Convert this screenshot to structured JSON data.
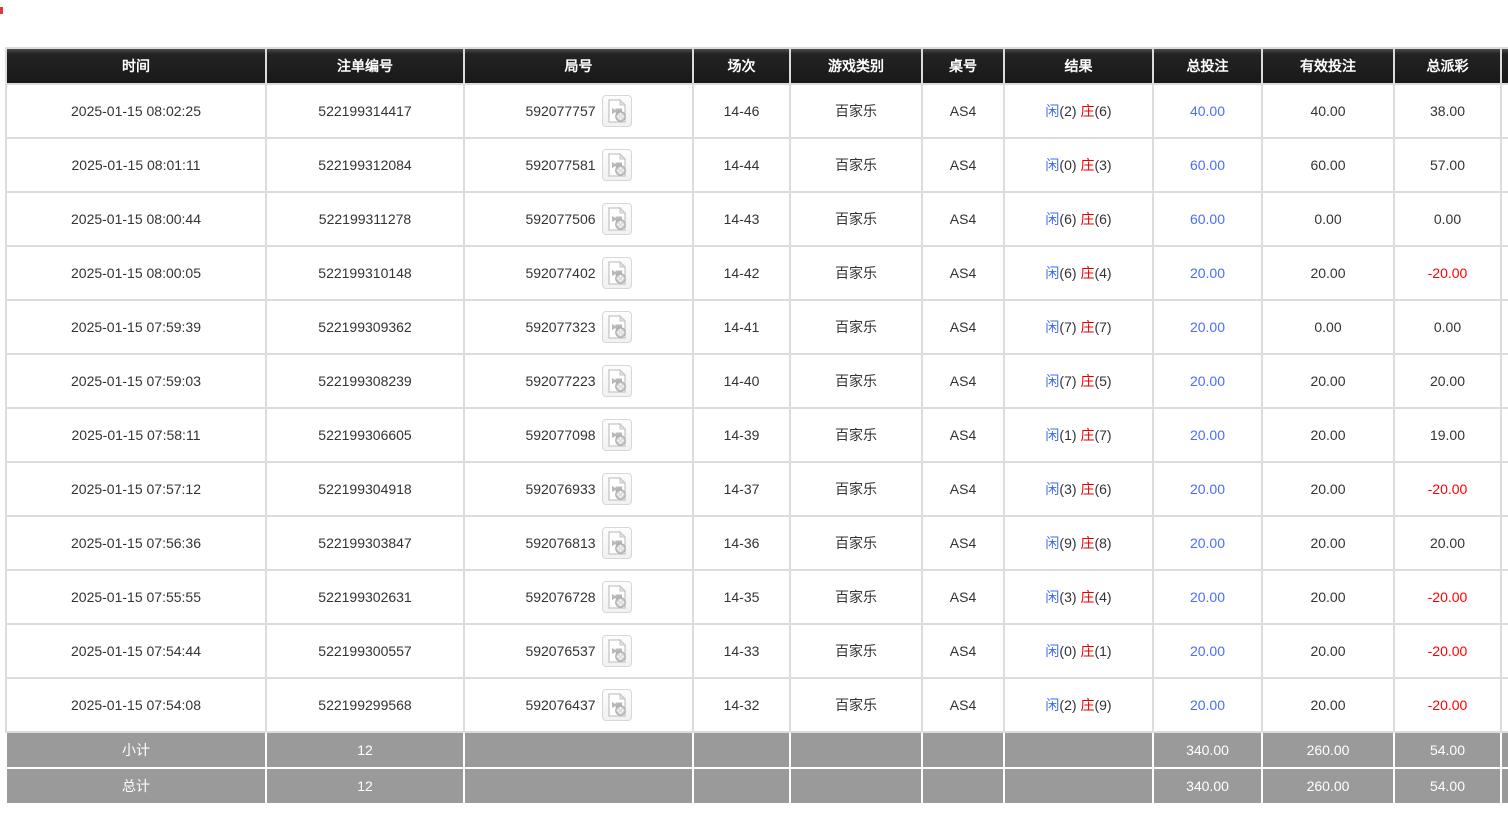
{
  "page": {
    "background": "#ffffff"
  },
  "colors": {
    "header_bg": "#1b1b1b",
    "header_text": "#ffffff",
    "cell_text": "#333333",
    "row_border": "#dcdcdc",
    "footer_bg": "#9a9a9a",
    "footer_text": "#ffffff",
    "total_bet_blue": "#4a6ef5",
    "player_blue": "#3d6af2",
    "banker_red": "#e60000",
    "negative_red": "#ff0000"
  },
  "table": {
    "columns": [
      "时间",
      "注单编号",
      "局号",
      "场次",
      "游戏类别",
      "桌号",
      "结果",
      "总投注",
      "有效投注",
      "总派彩",
      ""
    ],
    "result_labels": {
      "player": "闲",
      "banker": "庄"
    },
    "icons": {
      "round_video": "video-replay-icon"
    },
    "rows": [
      {
        "time": "2025-01-15 08:02:25",
        "bet_no": "522199314417",
        "round_no": "592077757",
        "session": "14-46",
        "game_type": "百家乐",
        "table_no": "AS4",
        "player": "(2)",
        "banker": "(6)",
        "total_bet": "40.00",
        "valid_bet": "40.00",
        "payout": "38.00"
      },
      {
        "time": "2025-01-15 08:01:11",
        "bet_no": "522199312084",
        "round_no": "592077581",
        "session": "14-44",
        "game_type": "百家乐",
        "table_no": "AS4",
        "player": "(0)",
        "banker": "(3)",
        "total_bet": "60.00",
        "valid_bet": "60.00",
        "payout": "57.00"
      },
      {
        "time": "2025-01-15 08:00:44",
        "bet_no": "522199311278",
        "round_no": "592077506",
        "session": "14-43",
        "game_type": "百家乐",
        "table_no": "AS4",
        "player": "(6)",
        "banker": "(6)",
        "total_bet": "60.00",
        "valid_bet": "0.00",
        "payout": "0.00"
      },
      {
        "time": "2025-01-15 08:00:05",
        "bet_no": "522199310148",
        "round_no": "592077402",
        "session": "14-42",
        "game_type": "百家乐",
        "table_no": "AS4",
        "player": "(6)",
        "banker": "(4)",
        "total_bet": "20.00",
        "valid_bet": "20.00",
        "payout": "-20.00"
      },
      {
        "time": "2025-01-15 07:59:39",
        "bet_no": "522199309362",
        "round_no": "592077323",
        "session": "14-41",
        "game_type": "百家乐",
        "table_no": "AS4",
        "player": "(7)",
        "banker": "(7)",
        "total_bet": "20.00",
        "valid_bet": "0.00",
        "payout": "0.00"
      },
      {
        "time": "2025-01-15 07:59:03",
        "bet_no": "522199308239",
        "round_no": "592077223",
        "session": "14-40",
        "game_type": "百家乐",
        "table_no": "AS4",
        "player": "(7)",
        "banker": "(5)",
        "total_bet": "20.00",
        "valid_bet": "20.00",
        "payout": "20.00"
      },
      {
        "time": "2025-01-15 07:58:11",
        "bet_no": "522199306605",
        "round_no": "592077098",
        "session": "14-39",
        "game_type": "百家乐",
        "table_no": "AS4",
        "player": "(1)",
        "banker": "(7)",
        "total_bet": "20.00",
        "valid_bet": "20.00",
        "payout": "19.00"
      },
      {
        "time": "2025-01-15 07:57:12",
        "bet_no": "522199304918",
        "round_no": "592076933",
        "session": "14-37",
        "game_type": "百家乐",
        "table_no": "AS4",
        "player": "(3)",
        "banker": "(6)",
        "total_bet": "20.00",
        "valid_bet": "20.00",
        "payout": "-20.00"
      },
      {
        "time": "2025-01-15 07:56:36",
        "bet_no": "522199303847",
        "round_no": "592076813",
        "session": "14-36",
        "game_type": "百家乐",
        "table_no": "AS4",
        "player": "(9)",
        "banker": "(8)",
        "total_bet": "20.00",
        "valid_bet": "20.00",
        "payout": "20.00"
      },
      {
        "time": "2025-01-15 07:55:55",
        "bet_no": "522199302631",
        "round_no": "592076728",
        "session": "14-35",
        "game_type": "百家乐",
        "table_no": "AS4",
        "player": "(3)",
        "banker": "(4)",
        "total_bet": "20.00",
        "valid_bet": "20.00",
        "payout": "-20.00"
      },
      {
        "time": "2025-01-15 07:54:44",
        "bet_no": "522199300557",
        "round_no": "592076537",
        "session": "14-33",
        "game_type": "百家乐",
        "table_no": "AS4",
        "player": "(0)",
        "banker": "(1)",
        "total_bet": "20.00",
        "valid_bet": "20.00",
        "payout": "-20.00"
      },
      {
        "time": "2025-01-15 07:54:08",
        "bet_no": "522199299568",
        "round_no": "592076437",
        "session": "14-32",
        "game_type": "百家乐",
        "table_no": "AS4",
        "player": "(2)",
        "banker": "(9)",
        "total_bet": "20.00",
        "valid_bet": "20.00",
        "payout": "-20.00"
      }
    ],
    "footer": {
      "subtotal": {
        "label": "小计",
        "count": "12",
        "total_bet": "340.00",
        "valid_bet": "260.00",
        "payout": "54.00"
      },
      "total": {
        "label": "总计",
        "count": "12",
        "total_bet": "340.00",
        "valid_bet": "260.00",
        "payout": "54.00"
      }
    }
  }
}
